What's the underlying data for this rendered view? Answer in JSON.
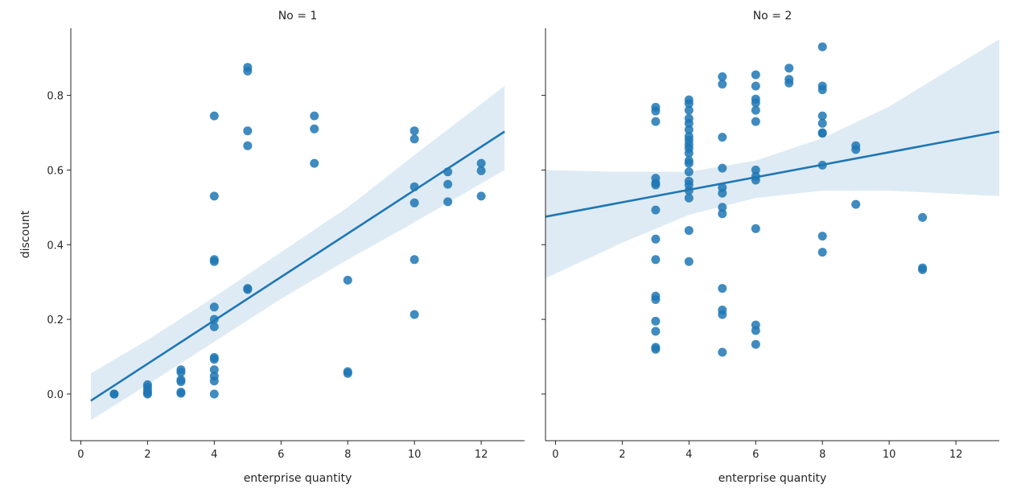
{
  "chart_data": [
    {
      "type": "scatter",
      "title": "No = 1",
      "xlabel": "enterprise quantity",
      "ylabel": "discount",
      "xlim": [
        -0.3,
        13.3
      ],
      "ylim": [
        -0.125,
        0.98
      ],
      "xticks": [
        0,
        2,
        4,
        6,
        8,
        10,
        12
      ],
      "yticks": [
        0.0,
        0.2,
        0.4,
        0.6,
        0.8
      ],
      "grid": false,
      "color": "#1f77b4",
      "points": [
        [
          1,
          0.0
        ],
        [
          1,
          0.0
        ],
        [
          2,
          0.025
        ],
        [
          2,
          0.018
        ],
        [
          2,
          0.01
        ],
        [
          2,
          0.003
        ],
        [
          2,
          0.0
        ],
        [
          3,
          0.065
        ],
        [
          3,
          0.058
        ],
        [
          3,
          0.038
        ],
        [
          3,
          0.033
        ],
        [
          3,
          0.005
        ],
        [
          3,
          0.002
        ],
        [
          4,
          0.745
        ],
        [
          4,
          0.53
        ],
        [
          4,
          0.36
        ],
        [
          4,
          0.355
        ],
        [
          4,
          0.233
        ],
        [
          4,
          0.2
        ],
        [
          4,
          0.18
        ],
        [
          4,
          0.098
        ],
        [
          4,
          0.093
        ],
        [
          4,
          0.065
        ],
        [
          4,
          0.048
        ],
        [
          4,
          0.035
        ],
        [
          4,
          0.0
        ],
        [
          5,
          0.875
        ],
        [
          5,
          0.865
        ],
        [
          5,
          0.705
        ],
        [
          5,
          0.665
        ],
        [
          5,
          0.283
        ],
        [
          5,
          0.28
        ],
        [
          7,
          0.745
        ],
        [
          7,
          0.71
        ],
        [
          7,
          0.618
        ],
        [
          8,
          0.305
        ],
        [
          8,
          0.06
        ],
        [
          8,
          0.055
        ],
        [
          10,
          0.705
        ],
        [
          10,
          0.683
        ],
        [
          10,
          0.555
        ],
        [
          10,
          0.512
        ],
        [
          10,
          0.36
        ],
        [
          10,
          0.213
        ],
        [
          11,
          0.595
        ],
        [
          11,
          0.562
        ],
        [
          11,
          0.515
        ],
        [
          12,
          0.618
        ],
        [
          12,
          0.598
        ],
        [
          12,
          0.53
        ]
      ],
      "regression": {
        "x": [
          0.3,
          12.7
        ],
        "y": [
          -0.018,
          0.703
        ]
      },
      "ci": {
        "x": [
          0.3,
          2,
          4,
          6,
          8,
          10,
          12.7
        ],
        "upper": [
          0.055,
          0.145,
          0.26,
          0.38,
          0.5,
          0.64,
          0.825
        ],
        "lower": [
          -0.07,
          0.025,
          0.14,
          0.255,
          0.36,
          0.46,
          0.6
        ]
      }
    },
    {
      "type": "scatter",
      "title": "No = 2",
      "xlabel": "enterprise quantity",
      "ylabel": "",
      "xlim": [
        -0.3,
        13.3
      ],
      "ylim": [
        -0.125,
        0.98
      ],
      "xticks": [
        0,
        2,
        4,
        6,
        8,
        10,
        12
      ],
      "yticks": [
        0.0,
        0.2,
        0.4,
        0.6,
        0.8
      ],
      "grid": false,
      "color": "#1f77b4",
      "points": [
        [
          3,
          0.768
        ],
        [
          3,
          0.758
        ],
        [
          3,
          0.73
        ],
        [
          3,
          0.578
        ],
        [
          3,
          0.565
        ],
        [
          3,
          0.56
        ],
        [
          3,
          0.493
        ],
        [
          3,
          0.415
        ],
        [
          3,
          0.36
        ],
        [
          3,
          0.262
        ],
        [
          3,
          0.253
        ],
        [
          3,
          0.195
        ],
        [
          3,
          0.168
        ],
        [
          3,
          0.125
        ],
        [
          3,
          0.12
        ],
        [
          4,
          0.788
        ],
        [
          4,
          0.778
        ],
        [
          4,
          0.76
        ],
        [
          4,
          0.738
        ],
        [
          4,
          0.725
        ],
        [
          4,
          0.708
        ],
        [
          4,
          0.69
        ],
        [
          4,
          0.68
        ],
        [
          4,
          0.668
        ],
        [
          4,
          0.658
        ],
        [
          4,
          0.645
        ],
        [
          4,
          0.625
        ],
        [
          4,
          0.618
        ],
        [
          4,
          0.595
        ],
        [
          4,
          0.57
        ],
        [
          4,
          0.56
        ],
        [
          4,
          0.545
        ],
        [
          4,
          0.525
        ],
        [
          4,
          0.438
        ],
        [
          4,
          0.355
        ],
        [
          5,
          0.85
        ],
        [
          5,
          0.83
        ],
        [
          5,
          0.688
        ],
        [
          5,
          0.605
        ],
        [
          5,
          0.553
        ],
        [
          5,
          0.538
        ],
        [
          5,
          0.5
        ],
        [
          5,
          0.483
        ],
        [
          5,
          0.283
        ],
        [
          5,
          0.225
        ],
        [
          5,
          0.213
        ],
        [
          5,
          0.112
        ],
        [
          6,
          0.855
        ],
        [
          6,
          0.825
        ],
        [
          6,
          0.79
        ],
        [
          6,
          0.78
        ],
        [
          6,
          0.76
        ],
        [
          6,
          0.73
        ],
        [
          6,
          0.6
        ],
        [
          6,
          0.583
        ],
        [
          6,
          0.573
        ],
        [
          6,
          0.443
        ],
        [
          6,
          0.185
        ],
        [
          6,
          0.17
        ],
        [
          6,
          0.133
        ],
        [
          7,
          0.873
        ],
        [
          7,
          0.843
        ],
        [
          7,
          0.833
        ],
        [
          8,
          0.93
        ],
        [
          8,
          0.825
        ],
        [
          8,
          0.815
        ],
        [
          8,
          0.745
        ],
        [
          8,
          0.725
        ],
        [
          8,
          0.7
        ],
        [
          8,
          0.698
        ],
        [
          8,
          0.613
        ],
        [
          8,
          0.423
        ],
        [
          8,
          0.38
        ],
        [
          9,
          0.665
        ],
        [
          9,
          0.655
        ],
        [
          9,
          0.508
        ],
        [
          11,
          0.473
        ],
        [
          11,
          0.338
        ],
        [
          11,
          0.333
        ]
      ],
      "regression": {
        "x": [
          -0.3,
          13.3
        ],
        "y": [
          0.475,
          0.703
        ]
      },
      "ci": {
        "x": [
          -0.3,
          2,
          4,
          6,
          8,
          10,
          13.3
        ],
        "upper": [
          0.6,
          0.595,
          0.595,
          0.625,
          0.685,
          0.77,
          0.95
        ],
        "lower": [
          0.31,
          0.405,
          0.48,
          0.525,
          0.545,
          0.545,
          0.53
        ]
      }
    }
  ]
}
